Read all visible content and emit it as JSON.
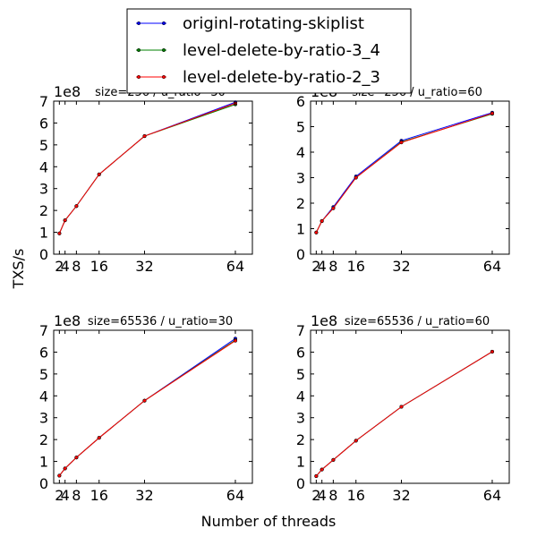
{
  "chart_data": {
    "type": "line",
    "xlabel": "Number of threads",
    "ylabel": "TXS/s",
    "legend": {
      "placement": "top-center",
      "entries": [
        "originl-rotating-skiplist",
        "level-delete-by-ratio-3_4",
        "level-delete-by-ratio-2_3"
      ]
    },
    "series_colors": [
      "#0000ff",
      "#008000",
      "#ff0000"
    ],
    "x_ticks": [
      2,
      4,
      8,
      16,
      32,
      64
    ],
    "x_tick_labels": [
      "2",
      "4",
      "8",
      "16",
      "32",
      "64"
    ],
    "xlim": [
      0,
      70
    ],
    "grid": false,
    "panels": [
      {
        "title": "size=256 / u_ratio=30",
        "y_exponent_label": "1e8",
        "ylim": [
          0,
          7
        ],
        "y_ticks": [
          0,
          1,
          2,
          3,
          4,
          5,
          6,
          7
        ],
        "y_tick_labels": [
          "0",
          "1",
          "2",
          "3",
          "4",
          "5",
          "6",
          "7"
        ],
        "series": [
          {
            "name": "originl-rotating-skiplist",
            "x": [
              2,
              4,
              8,
              16,
              32,
              64
            ],
            "y": [
              0.95,
              1.55,
              2.2,
              3.65,
              5.4,
              6.95
            ]
          },
          {
            "name": "level-delete-by-ratio-3_4",
            "x": [
              2,
              4,
              8,
              16,
              32,
              64
            ],
            "y": [
              0.95,
              1.55,
              2.2,
              3.65,
              5.4,
              6.85
            ]
          },
          {
            "name": "level-delete-by-ratio-2_3",
            "x": [
              2,
              4,
              8,
              16,
              32,
              64
            ],
            "y": [
              0.95,
              1.55,
              2.2,
              3.65,
              5.4,
              6.9
            ]
          }
        ]
      },
      {
        "title": "size=256 / u_ratio=60",
        "y_exponent_label": "1e8",
        "ylim": [
          0,
          6
        ],
        "y_ticks": [
          0,
          1,
          2,
          3,
          4,
          5,
          6
        ],
        "y_tick_labels": [
          "0",
          "1",
          "2",
          "3",
          "4",
          "5",
          "6"
        ],
        "series": [
          {
            "name": "originl-rotating-skiplist",
            "x": [
              2,
              4,
              8,
              16,
              32,
              64
            ],
            "y": [
              0.85,
              1.3,
              1.85,
              3.05,
              4.45,
              5.55
            ]
          },
          {
            "name": "level-delete-by-ratio-3_4",
            "x": [
              2,
              4,
              8,
              16,
              32,
              64
            ],
            "y": [
              0.85,
              1.3,
              1.8,
              3.0,
              4.4,
              5.5
            ]
          },
          {
            "name": "level-delete-by-ratio-2_3",
            "x": [
              2,
              4,
              8,
              16,
              32,
              64
            ],
            "y": [
              0.85,
              1.3,
              1.8,
              3.0,
              4.38,
              5.52
            ]
          }
        ]
      },
      {
        "title": "size=65536 / u_ratio=30",
        "y_exponent_label": "1e8",
        "ylim": [
          0,
          7
        ],
        "y_ticks": [
          0,
          1,
          2,
          3,
          4,
          5,
          6,
          7
        ],
        "y_tick_labels": [
          "0",
          "1",
          "2",
          "3",
          "4",
          "5",
          "6",
          "7"
        ],
        "series": [
          {
            "name": "originl-rotating-skiplist",
            "x": [
              2,
              4,
              8,
              16,
              32,
              64
            ],
            "y": [
              0.35,
              0.68,
              1.18,
              2.08,
              3.78,
              6.62
            ]
          },
          {
            "name": "level-delete-by-ratio-3_4",
            "x": [
              2,
              4,
              8,
              16,
              32,
              64
            ],
            "y": [
              0.35,
              0.68,
              1.18,
              2.08,
              3.78,
              6.55
            ]
          },
          {
            "name": "level-delete-by-ratio-2_3",
            "x": [
              2,
              4,
              8,
              16,
              32,
              64
            ],
            "y": [
              0.35,
              0.68,
              1.18,
              2.08,
              3.78,
              6.52
            ]
          }
        ]
      },
      {
        "title": "size=65536 / u_ratio=60",
        "y_exponent_label": "1e8",
        "ylim": [
          0,
          7
        ],
        "y_ticks": [
          0,
          1,
          2,
          3,
          4,
          5,
          6,
          7
        ],
        "y_tick_labels": [
          "0",
          "1",
          "2",
          "3",
          "4",
          "5",
          "6",
          "7"
        ],
        "series": [
          {
            "name": "originl-rotating-skiplist",
            "x": [
              2,
              4,
              8,
              16,
              32,
              64
            ],
            "y": [
              0.33,
              0.63,
              1.07,
              1.95,
              3.5,
              6.02
            ]
          },
          {
            "name": "level-delete-by-ratio-3_4",
            "x": [
              2,
              4,
              8,
              16,
              32,
              64
            ],
            "y": [
              0.33,
              0.63,
              1.07,
              1.95,
              3.5,
              6.02
            ]
          },
          {
            "name": "level-delete-by-ratio-2_3",
            "x": [
              2,
              4,
              8,
              16,
              32,
              64
            ],
            "y": [
              0.33,
              0.63,
              1.07,
              1.95,
              3.5,
              6.02
            ]
          }
        ]
      }
    ]
  }
}
